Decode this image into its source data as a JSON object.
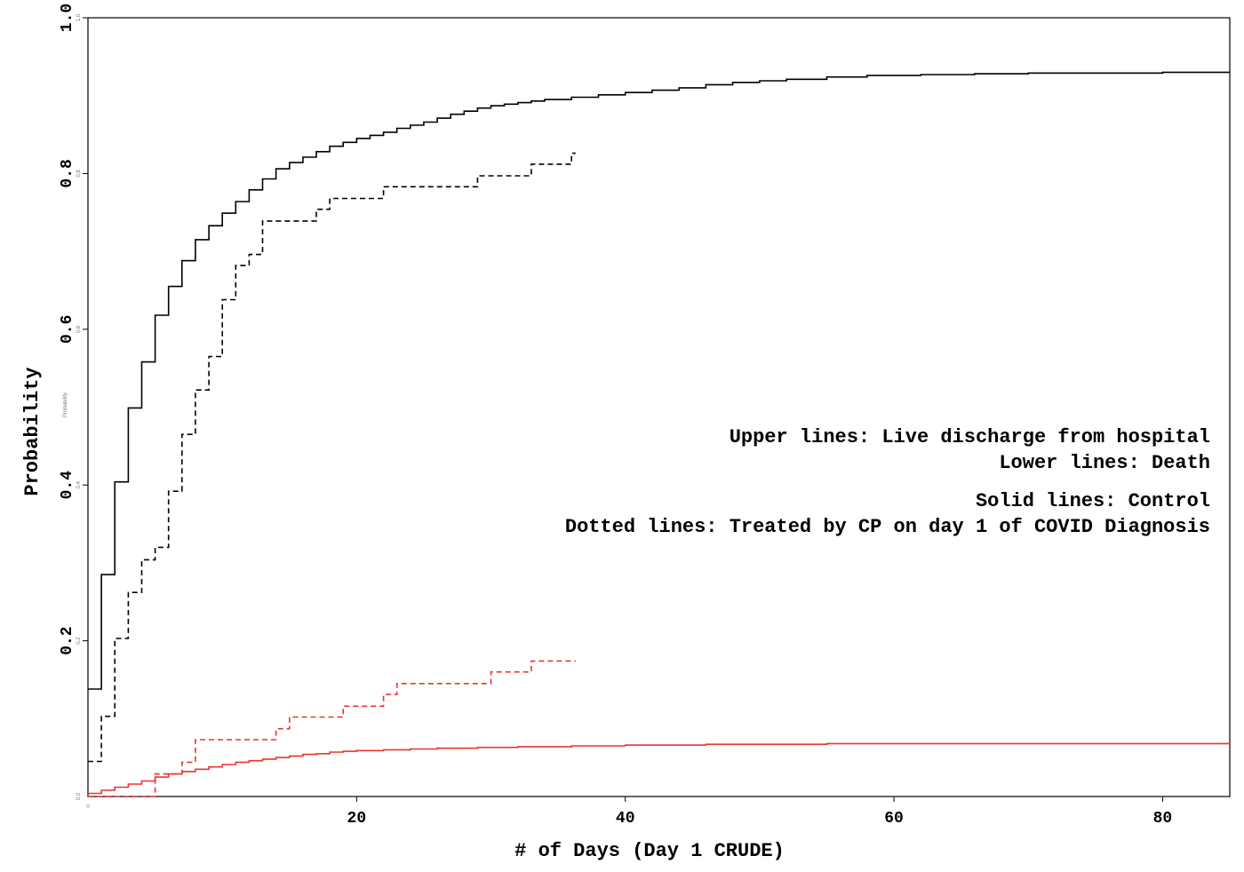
{
  "chart_data": {
    "type": "line",
    "xlabel": "# of Days (Day 1 CRUDE)",
    "ylabel": "Probability",
    "xlim": [
      0,
      85
    ],
    "ylim": [
      0,
      1.0
    ],
    "x_ticks": [
      "20",
      "40",
      "60",
      "80"
    ],
    "x_tick_values": [
      20,
      40,
      60,
      80
    ],
    "y_ticks": [
      "0.2",
      "0.4",
      "0.6",
      "0.8",
      "1.0"
    ],
    "y_tick_values": [
      0.2,
      0.4,
      0.6,
      0.8,
      1.0
    ],
    "x_minor_ticks": [
      "0"
    ],
    "y_minor_ticks": [
      "0.0",
      "0.2",
      "0.4",
      "0.6",
      "0.8",
      "1.0"
    ],
    "y_minor_label": "Probability",
    "legend": [
      "Upper lines: Live discharge from hospital",
      "Lower lines: Death",
      "Solid lines: Control",
      "Dotted lines: Treated by CP on day 1 of COVID Diagnosis"
    ],
    "legend_placement": "center-right",
    "grid": false,
    "colors": {
      "discharge": "#000000",
      "death": "#e8352f"
    },
    "series": [
      {
        "group": "discharge-control",
        "line_style": "solid",
        "color": "#000000",
        "steps": [
          [
            0,
            0.138
          ],
          [
            1,
            0.285
          ],
          [
            2,
            0.404
          ],
          [
            3,
            0.499
          ],
          [
            4,
            0.558
          ],
          [
            5,
            0.618
          ],
          [
            6,
            0.655
          ],
          [
            7,
            0.688
          ],
          [
            8,
            0.715
          ],
          [
            9,
            0.733
          ],
          [
            10,
            0.749
          ],
          [
            11,
            0.764
          ],
          [
            12,
            0.779
          ],
          [
            13,
            0.793
          ],
          [
            14,
            0.806
          ],
          [
            15,
            0.814
          ],
          [
            16,
            0.821
          ],
          [
            17,
            0.828
          ],
          [
            18,
            0.835
          ],
          [
            19,
            0.84
          ],
          [
            20,
            0.845
          ],
          [
            21,
            0.849
          ],
          [
            22,
            0.853
          ],
          [
            23,
            0.858
          ],
          [
            24,
            0.862
          ],
          [
            25,
            0.866
          ],
          [
            26,
            0.871
          ],
          [
            27,
            0.876
          ],
          [
            28,
            0.88
          ],
          [
            29,
            0.884
          ],
          [
            30,
            0.887
          ],
          [
            31,
            0.889
          ],
          [
            32,
            0.891
          ],
          [
            33,
            0.893
          ],
          [
            34,
            0.895
          ],
          [
            36,
            0.898
          ],
          [
            38,
            0.901
          ],
          [
            40,
            0.904
          ],
          [
            42,
            0.907
          ],
          [
            44,
            0.91
          ],
          [
            46,
            0.914
          ],
          [
            48,
            0.917
          ],
          [
            50,
            0.919
          ],
          [
            52,
            0.921
          ],
          [
            55,
            0.924
          ],
          [
            58,
            0.926
          ],
          [
            62,
            0.927
          ],
          [
            66,
            0.928
          ],
          [
            70,
            0.929
          ],
          [
            75,
            0.929
          ],
          [
            80,
            0.93
          ],
          [
            85,
            0.93
          ]
        ]
      },
      {
        "group": "discharge-treated",
        "line_style": "dashed",
        "color": "#000000",
        "steps": [
          [
            0,
            0.045
          ],
          [
            1,
            0.103
          ],
          [
            2,
            0.203
          ],
          [
            3,
            0.262
          ],
          [
            4,
            0.304
          ],
          [
            5,
            0.32
          ],
          [
            6,
            0.392
          ],
          [
            7,
            0.465
          ],
          [
            8,
            0.522
          ],
          [
            9,
            0.565
          ],
          [
            10,
            0.638
          ],
          [
            11,
            0.682
          ],
          [
            12,
            0.696
          ],
          [
            13,
            0.739
          ],
          [
            17,
            0.754
          ],
          [
            18,
            0.768
          ],
          [
            22,
            0.783
          ],
          [
            29,
            0.797
          ],
          [
            33,
            0.812
          ],
          [
            36,
            0.826
          ]
        ],
        "end_x": 36.3
      },
      {
        "group": "death-control",
        "line_style": "solid",
        "color": "#e8352f",
        "steps": [
          [
            0,
            0.004
          ],
          [
            1,
            0.008
          ],
          [
            2,
            0.012
          ],
          [
            3,
            0.016
          ],
          [
            4,
            0.02
          ],
          [
            5,
            0.025
          ],
          [
            6,
            0.029
          ],
          [
            7,
            0.032
          ],
          [
            8,
            0.035
          ],
          [
            9,
            0.038
          ],
          [
            10,
            0.041
          ],
          [
            11,
            0.044
          ],
          [
            12,
            0.046
          ],
          [
            13,
            0.048
          ],
          [
            14,
            0.05
          ],
          [
            15,
            0.052
          ],
          [
            16,
            0.054
          ],
          [
            17,
            0.055
          ],
          [
            18,
            0.057
          ],
          [
            19,
            0.058
          ],
          [
            20,
            0.059
          ],
          [
            22,
            0.06
          ],
          [
            24,
            0.061
          ],
          [
            26,
            0.062
          ],
          [
            29,
            0.063
          ],
          [
            32,
            0.064
          ],
          [
            36,
            0.065
          ],
          [
            40,
            0.066
          ],
          [
            46,
            0.067
          ],
          [
            55,
            0.068
          ],
          [
            70,
            0.068
          ],
          [
            85,
            0.069
          ]
        ]
      },
      {
        "group": "death-treated",
        "line_style": "dashed",
        "color": "#e8352f",
        "steps": [
          [
            0,
            0.0
          ],
          [
            5,
            0.029
          ],
          [
            7,
            0.044
          ],
          [
            8,
            0.073
          ],
          [
            14,
            0.087
          ],
          [
            15,
            0.102
          ],
          [
            19,
            0.116
          ],
          [
            22,
            0.131
          ],
          [
            23,
            0.145
          ],
          [
            30,
            0.16
          ],
          [
            33,
            0.174
          ]
        ],
        "end_x": 36.3
      }
    ]
  }
}
